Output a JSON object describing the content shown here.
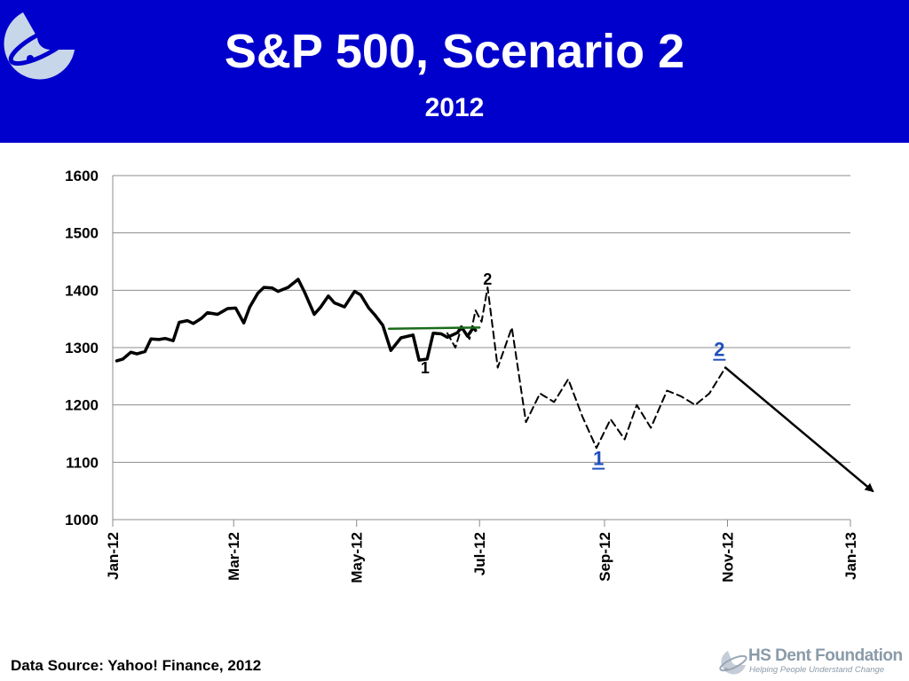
{
  "header": {
    "title": "S&P 500, Scenario 2",
    "subtitle": "2012",
    "background_color": "#0000cc"
  },
  "chart_data": {
    "type": "line",
    "title": "S&P 500, Scenario 2",
    "subtitle": "2012",
    "xlabel": "",
    "ylabel": "",
    "ylim": [
      1000,
      1600
    ],
    "yticks": [
      "1600",
      "1500",
      "1400",
      "1300",
      "1200",
      "1100",
      "1000"
    ],
    "xticks": [
      "Jan-12",
      "Mar-12",
      "May-12",
      "Jul-12",
      "Sep-12",
      "Nov-12",
      "Jan-13"
    ],
    "grid": true,
    "series": [
      {
        "style": "solid",
        "color": "#000000",
        "x": [
          "2012-01-03",
          "2012-01-06",
          "2012-01-10",
          "2012-01-13",
          "2012-01-17",
          "2012-01-20",
          "2012-01-24",
          "2012-01-27",
          "2012-01-31",
          "2012-02-03",
          "2012-02-07",
          "2012-02-10",
          "2012-02-14",
          "2012-02-17",
          "2012-02-22",
          "2012-02-27",
          "2012-03-02",
          "2012-03-06",
          "2012-03-09",
          "2012-03-13",
          "2012-03-16",
          "2012-03-20",
          "2012-03-23",
          "2012-03-28",
          "2012-04-02",
          "2012-04-05",
          "2012-04-10",
          "2012-04-13",
          "2012-04-17",
          "2012-04-20",
          "2012-04-25",
          "2012-04-30",
          "2012-05-03",
          "2012-05-07",
          "2012-05-10",
          "2012-05-14",
          "2012-05-18",
          "2012-05-23",
          "2012-05-29",
          "2012-06-01",
          "2012-06-05",
          "2012-06-08",
          "2012-06-12",
          "2012-06-15",
          "2012-06-20",
          "2012-06-22",
          "2012-06-25",
          "2012-06-28",
          "2012-06-29"
        ],
        "values": [
          1277,
          1280,
          1292,
          1289,
          1293,
          1315,
          1314,
          1316,
          1312,
          1344,
          1347,
          1342,
          1351,
          1361,
          1358,
          1368,
          1369,
          1343,
          1371,
          1395,
          1405,
          1404,
          1398,
          1405,
          1419,
          1398,
          1358,
          1370,
          1390,
          1378,
          1371,
          1398,
          1392,
          1369,
          1357,
          1339,
          1295,
          1317,
          1322,
          1278,
          1280,
          1325,
          1324,
          1318,
          1326,
          1336,
          1320,
          1335,
          1330
        ]
      },
      {
        "style": "dashed",
        "color": "#000000",
        "x": [
          "2012-06-15",
          "2012-06-19",
          "2012-06-22",
          "2012-06-26",
          "2012-06-29",
          "2012-07-02",
          "2012-07-05",
          "2012-07-10",
          "2012-07-17",
          "2012-07-24",
          "2012-07-31",
          "2012-08-07",
          "2012-08-14",
          "2012-08-21",
          "2012-08-28",
          "2012-09-04",
          "2012-09-11",
          "2012-09-17",
          "2012-09-24",
          "2012-10-02",
          "2012-10-09",
          "2012-10-16",
          "2012-10-23",
          "2012-10-31"
        ],
        "values": [
          1325,
          1300,
          1335,
          1315,
          1365,
          1345,
          1405,
          1265,
          1335,
          1170,
          1220,
          1205,
          1245,
          1180,
          1125,
          1175,
          1140,
          1200,
          1160,
          1225,
          1215,
          1200,
          1220,
          1265
        ]
      },
      {
        "style": "solid-arrow",
        "color": "#000000",
        "x": [
          "2012-10-31",
          "2013-01-12"
        ],
        "values": [
          1265,
          1050
        ]
      },
      {
        "style": "solid",
        "color": "#1a6b1a",
        "x": [
          "2012-05-17",
          "2012-07-01"
        ],
        "values": [
          1333,
          1335
        ]
      }
    ],
    "annotations": [
      {
        "text": "1",
        "x": "2012-06-04",
        "y": 1255,
        "color": "#000000",
        "underline": false,
        "size": 18
      },
      {
        "text": "2",
        "x": "2012-07-05",
        "y": 1410,
        "color": "#000000",
        "underline": false,
        "size": 18
      },
      {
        "text": "1",
        "x": "2012-08-29",
        "y": 1095,
        "color": "#1f4fbf",
        "underline": true,
        "size": 22
      },
      {
        "text": "2",
        "x": "2012-10-28",
        "y": 1285,
        "color": "#1f4fbf",
        "underline": true,
        "size": 22
      }
    ]
  },
  "footer": {
    "source": "Data Source: Yahoo! Finance, 2012",
    "org_name": "HS Dent Foundation",
    "tagline": "Helping People Understand Change"
  }
}
